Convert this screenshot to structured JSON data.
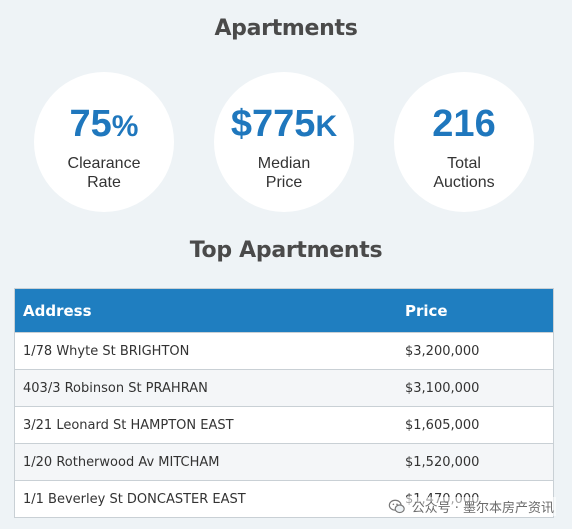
{
  "sections": {
    "apartments_title": "Apartments",
    "top_title": "Top Apartments"
  },
  "stats": {
    "clearance": {
      "value": "75",
      "suffix": "%",
      "label_line1": "Clearance",
      "label_line2": "Rate"
    },
    "median": {
      "value": "$775",
      "suffix": "K",
      "label_line1": "Median",
      "label_line2": "Price"
    },
    "total": {
      "value": "216",
      "suffix": "",
      "label_line1": "Total",
      "label_line2": "Auctions"
    }
  },
  "table": {
    "headers": {
      "address": "Address",
      "price": "Price"
    },
    "rows": [
      {
        "address": "1/78 Whyte St BRIGHTON",
        "price": "$3,200,000"
      },
      {
        "address": "403/3 Robinson St PRAHRAN",
        "price": "$3,100,000"
      },
      {
        "address": "3/21 Leonard St HAMPTON EAST",
        "price": "$1,605,000"
      },
      {
        "address": "1/20 Rotherwood Av MITCHAM",
        "price": "$1,520,000"
      },
      {
        "address": "1/1 Beverley St DONCASTER EAST",
        "price": "$1,470,000"
      }
    ]
  },
  "watermark": {
    "text": "公众号 · 墨尔本房产资讯",
    "icon": "wechat-icon"
  },
  "colors": {
    "accent": "#1f77bd",
    "header_bg": "#1f7ec0",
    "page_bg": "#eef3f6"
  }
}
